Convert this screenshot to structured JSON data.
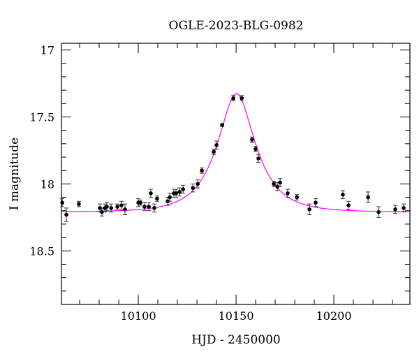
{
  "chart_data": {
    "type": "scatter",
    "title": "OGLE-2023-BLG-0982",
    "xlabel": "HJD - 2450000",
    "ylabel": "I magnitude",
    "xlim": [
      10060.7,
      10238.9
    ],
    "ylim": [
      16.95,
      18.9
    ],
    "y_inverted": true,
    "x_ticks": [
      10100,
      10150,
      10200
    ],
    "x_tick_labels": [
      "10100",
      "10150",
      "10200"
    ],
    "y_ticks": [
      17,
      17.5,
      18,
      18.5
    ],
    "y_tick_labels": [
      "17",
      "17.5",
      "18",
      "18.5"
    ],
    "grid": false,
    "colors": {
      "points": "#000000",
      "model": "#ff00ff"
    },
    "series": [
      {
        "name": "data",
        "x": [
          10061.1,
          10063.2,
          10069.6,
          10080.4,
          10081.4,
          10082.9,
          10083.9,
          10086.1,
          10089.3,
          10091.4,
          10093.2,
          10100.0,
          10101.1,
          10103.2,
          10105.4,
          10106.4,
          10108.2,
          10109.6,
          10115.0,
          10116.1,
          10118.2,
          10119.3,
          10121.1,
          10122.9,
          10127.9,
          10130.4,
          10132.5,
          10138.6,
          10140.0,
          10142.9,
          10148.6,
          10152.9,
          10158.2,
          10160.0,
          10161.4,
          10169.3,
          10171.1,
          10172.5,
          10176.4,
          10181.1,
          10187.5,
          10190.7,
          10204.6,
          10207.5,
          10217.5,
          10222.9,
          10231.4,
          10235.7
        ],
        "y": [
          18.14,
          18.23,
          18.15,
          18.18,
          18.21,
          18.18,
          18.17,
          18.18,
          18.17,
          18.16,
          18.19,
          18.14,
          18.14,
          18.17,
          18.17,
          18.07,
          18.18,
          18.11,
          18.13,
          18.1,
          18.07,
          18.07,
          18.06,
          18.04,
          18.03,
          18.0,
          17.9,
          17.76,
          17.71,
          17.56,
          17.36,
          17.36,
          17.67,
          17.74,
          17.81,
          18.0,
          18.02,
          17.99,
          18.07,
          18.1,
          18.19,
          18.14,
          18.08,
          18.16,
          18.1,
          18.21,
          18.19,
          18.18
        ],
        "err": [
          0.03,
          0.05,
          0.02,
          0.03,
          0.03,
          0.03,
          0.03,
          0.03,
          0.02,
          0.03,
          0.04,
          0.03,
          0.02,
          0.03,
          0.03,
          0.03,
          0.03,
          0.02,
          0.03,
          0.03,
          0.03,
          0.03,
          0.03,
          0.03,
          0.03,
          0.03,
          0.02,
          0.02,
          0.03,
          0.01,
          0.02,
          0.02,
          0.02,
          0.02,
          0.03,
          0.02,
          0.03,
          0.03,
          0.03,
          0.02,
          0.04,
          0.03,
          0.03,
          0.03,
          0.04,
          0.04,
          0.03,
          0.03
        ]
      },
      {
        "name": "model",
        "model_type": "point-lens",
        "t0": 10150.2,
        "tE": 17,
        "u0": 0.48,
        "baseline_mag": 18.21
      }
    ]
  }
}
